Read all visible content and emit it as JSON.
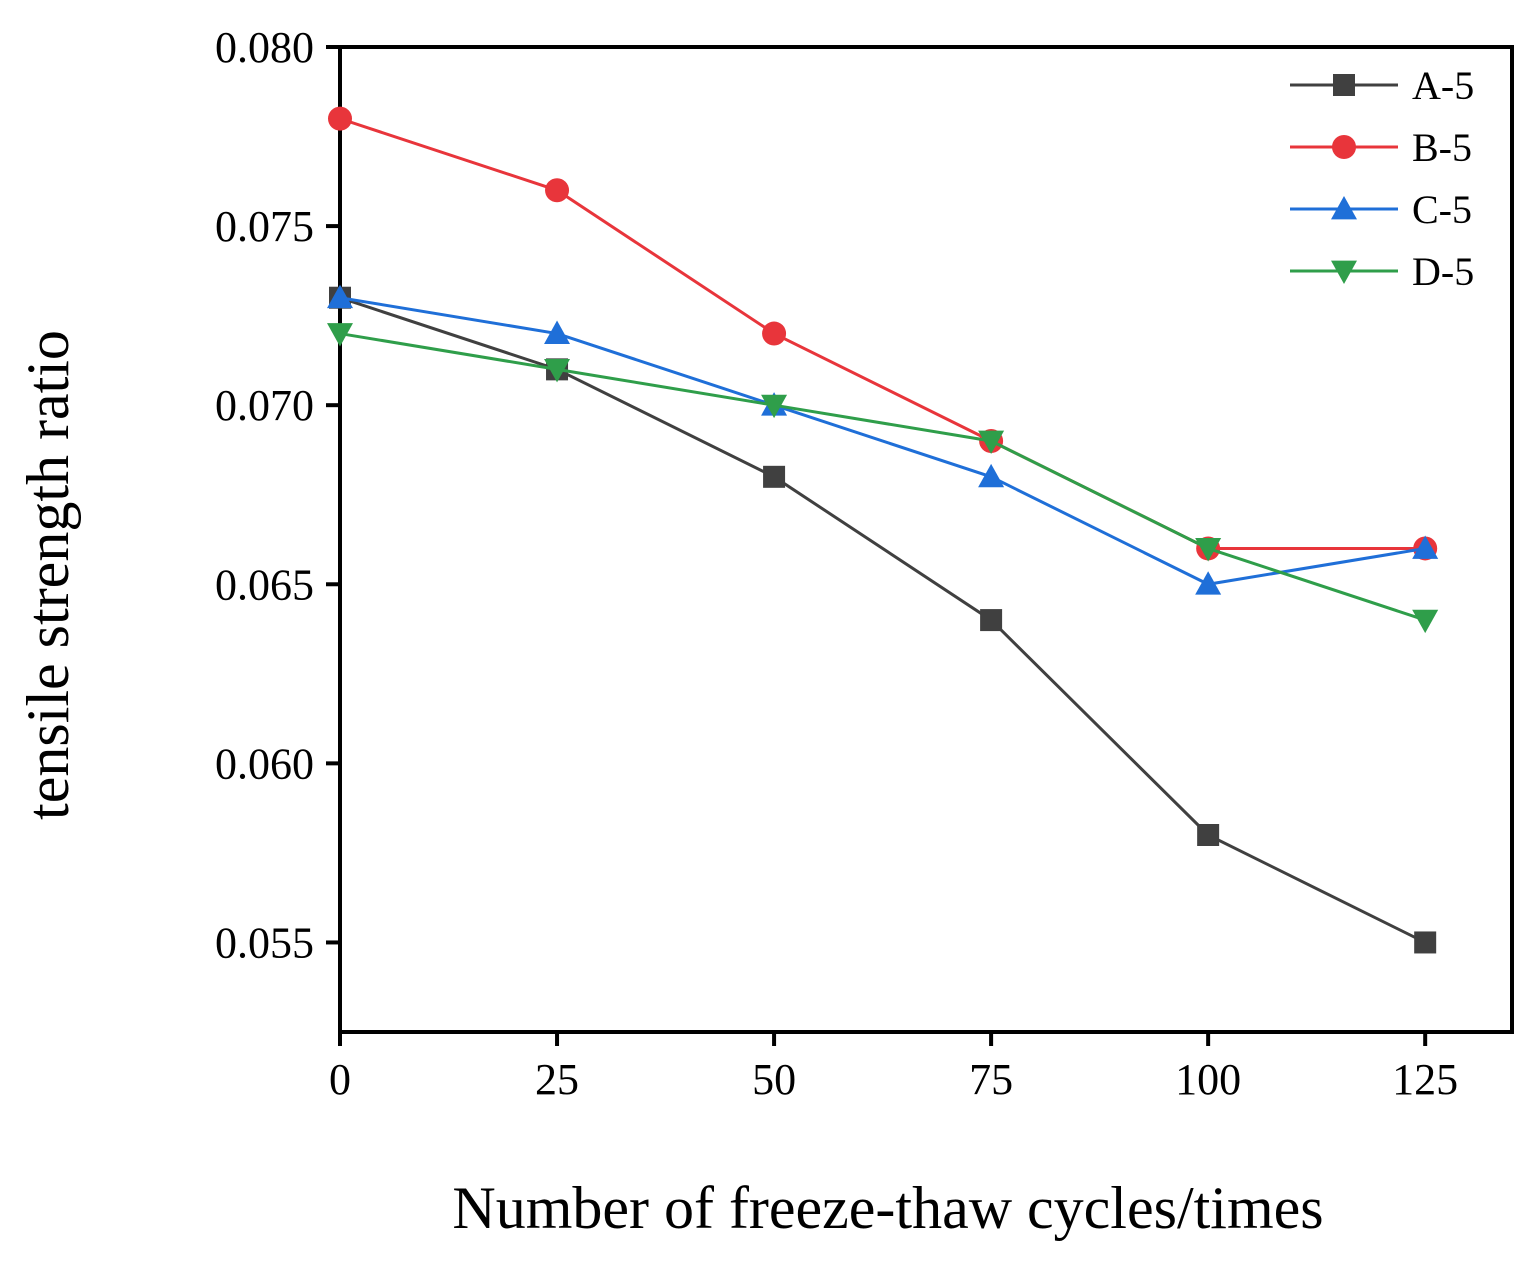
{
  "chart_data": {
    "type": "line",
    "title": "",
    "xlabel": "Number of freeze-thaw cycles/times",
    "ylabel": "tensile strength ratio",
    "x": [
      0,
      25,
      50,
      75,
      100,
      125
    ],
    "x_ticks": [
      "0",
      "25",
      "50",
      "75",
      "100",
      "125"
    ],
    "y_ticks": [
      "0.055",
      "0.060",
      "0.065",
      "0.070",
      "0.075",
      "0.080"
    ],
    "xlim": [
      0,
      135
    ],
    "ylim": [
      0.0525,
      0.08
    ],
    "grid": false,
    "legend_position": "top-right",
    "series": [
      {
        "name": "A-5",
        "color": "#404040",
        "marker": "square",
        "values": [
          0.073,
          0.071,
          0.068,
          0.064,
          0.058,
          0.055
        ]
      },
      {
        "name": "B-5",
        "color": "#e8353b",
        "marker": "circle",
        "values": [
          0.078,
          0.076,
          0.072,
          0.069,
          0.066,
          0.066
        ]
      },
      {
        "name": "C-5",
        "color": "#1f6fd8",
        "marker": "triangle-up",
        "values": [
          0.073,
          0.072,
          0.07,
          0.068,
          0.065,
          0.066
        ]
      },
      {
        "name": "D-5",
        "color": "#2f9e4a",
        "marker": "triangle-down",
        "values": [
          0.072,
          0.071,
          0.07,
          0.069,
          0.066,
          0.064
        ]
      }
    ]
  }
}
